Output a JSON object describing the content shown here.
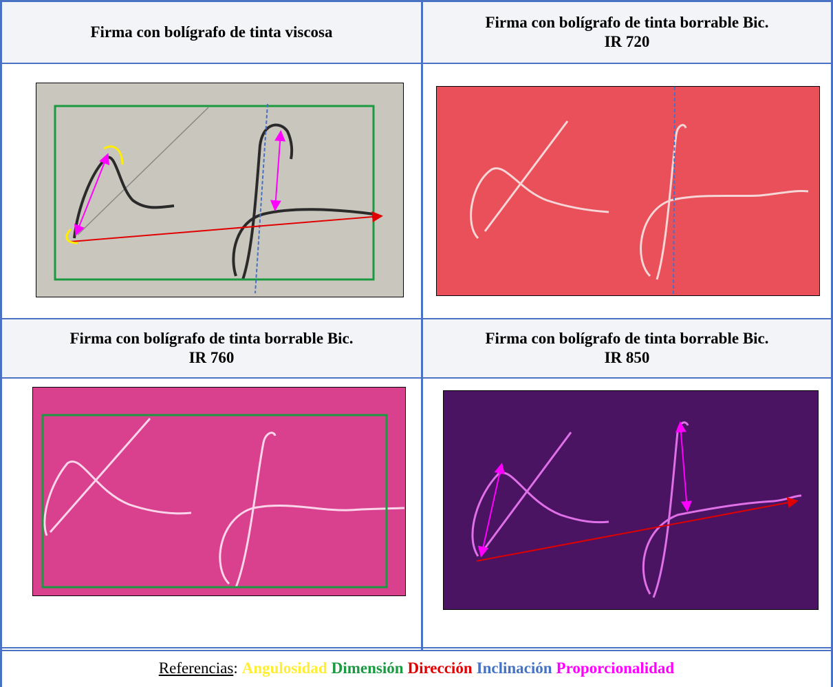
{
  "table": {
    "headers": [
      [
        "Firma con bolígrafo de tinta viscosa"
      ],
      [
        "Firma con bolígrafo de tinta borrable Bic.",
        "IR 720"
      ],
      [
        "Firma con bolígrafo de tinta borrable Bic.",
        "IR 760"
      ],
      [
        "Firma con bolígrafo de tinta borrable Bic.",
        "IR 850"
      ]
    ],
    "references": {
      "label": "Referencias",
      "separator": ":",
      "items": [
        "Angulosidad",
        "Dimensión",
        "Dirección",
        "Inclinación",
        "Proporcionalidad"
      ]
    }
  }
}
